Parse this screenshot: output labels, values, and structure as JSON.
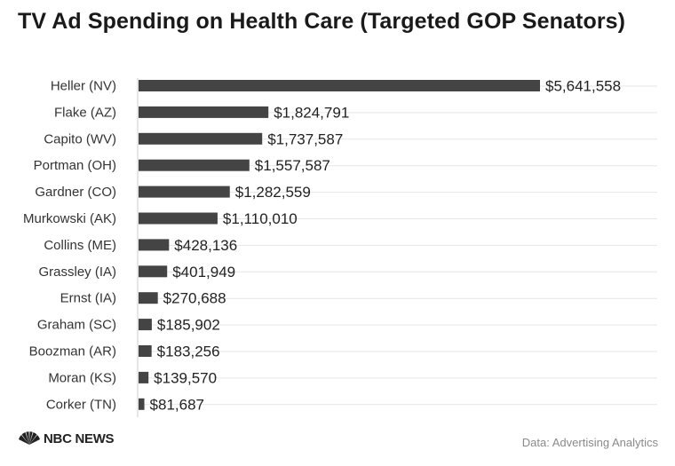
{
  "title": "TV Ad Spending on Health Care (Targeted GOP Senators)",
  "footer": {
    "logo": "NBC NEWS",
    "logo_icon": "peacock-icon",
    "source": "Data: Advertising Analytics"
  },
  "colors": {
    "bar": "#444444",
    "gridline": "#e6e6e6",
    "axis": "#cccccc"
  },
  "chart_data": {
    "type": "bar",
    "orientation": "horizontal",
    "title": "TV Ad Spending on Health Care (Targeted GOP Senators)",
    "categories": [
      "Heller (NV)",
      "Flake (AZ)",
      "Capito (WV)",
      "Portman (OH)",
      "Gardner (CO)",
      "Murkowski (AK)",
      "Collins (ME)",
      "Grassley (IA)",
      "Ernst (IA)",
      "Graham (SC)",
      "Boozman (AR)",
      "Moran (KS)",
      "Corker (TN)"
    ],
    "values": [
      5641558,
      1824791,
      1737587,
      1557587,
      1282559,
      1110010,
      428136,
      401949,
      270688,
      185902,
      183256,
      139570,
      81687
    ],
    "value_labels": [
      "$5,641,558",
      "$1,824,791",
      "$1,737,587",
      "$1,557,587",
      "$1,282,559",
      "$1,110,010",
      "$428,136",
      "$401,949",
      "$270,688",
      "$185,902",
      "$183,256",
      "$139,570",
      "$81,687"
    ],
    "xlim": [
      0,
      5641558
    ],
    "grid": true,
    "legend": "none"
  }
}
